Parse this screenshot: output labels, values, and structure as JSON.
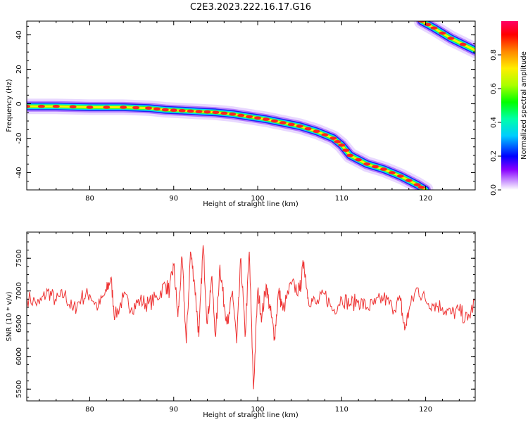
{
  "title": "C2E3.2023.222.16.17.G16",
  "colorbar": {
    "label": "Normalized spectral amplitude",
    "ticks": [
      "0.0",
      "0.2",
      "0.4",
      "0.6",
      "0.8"
    ],
    "tick_values": [
      0.0,
      0.2,
      0.4,
      0.6,
      0.8
    ],
    "range": [
      0,
      1
    ]
  },
  "chart_data": [
    {
      "type": "heatmap",
      "xlabel": "Height of straight line (km)",
      "ylabel": "Frequency (Hz)",
      "xlim": [
        72.5,
        125.9
      ],
      "ylim": [
        -50,
        48
      ],
      "xticks": [
        80,
        90,
        100,
        110,
        120
      ],
      "yticks": [
        -40,
        -20,
        0,
        20,
        40
      ],
      "ridges": [
        {
          "x": [
            72.5,
            76,
            80,
            84,
            87,
            89,
            91,
            93,
            95,
            97,
            99,
            101,
            103,
            105,
            107,
            109,
            110,
            111,
            113,
            115,
            117,
            119,
            120
          ],
          "y": [
            -1.5,
            -1.5,
            -2,
            -2,
            -2.5,
            -3.5,
            -4,
            -4.5,
            -5,
            -6,
            -7.5,
            -9,
            -11,
            -13,
            -16,
            -20,
            -24,
            -30,
            -35,
            -38,
            -42,
            -47,
            -50
          ],
          "peak_amplitude": 0.95
        },
        {
          "x": [
            119.5,
            121,
            123,
            125.9
          ],
          "y": [
            48,
            44,
            38,
            31
          ],
          "peak_amplitude": 0.9
        }
      ]
    },
    {
      "type": "line",
      "xlabel": "Height of straight line (km)",
      "ylabel": "SNR (10 * v/v)",
      "xlim": [
        72.5,
        125.9
      ],
      "ylim": [
        5320,
        7900
      ],
      "xticks": [
        80,
        90,
        100,
        110,
        120
      ],
      "yticks": [
        5500,
        6000,
        6500,
        7000,
        7500
      ],
      "color": "#ee3333",
      "series": [
        {
          "x": [
            72.5,
            74,
            75,
            76,
            77,
            78,
            79,
            80,
            81,
            82,
            82.5,
            83,
            84,
            85,
            86,
            87,
            88,
            89,
            89.5,
            90,
            90.5,
            91,
            91.5,
            92,
            92.5,
            93,
            93.5,
            94,
            94.5,
            95,
            95.5,
            96,
            96.5,
            97,
            97.5,
            98,
            98.5,
            99,
            99.5,
            100,
            100.5,
            101,
            101.5,
            102,
            102.5,
            103,
            104,
            105,
            105.5,
            106,
            107,
            108,
            109,
            110,
            111,
            112,
            113,
            114,
            115,
            116,
            117,
            117.5,
            118,
            119,
            120,
            121,
            122,
            123,
            124,
            125,
            125.9
          ],
          "y": [
            6900,
            6800,
            7000,
            6850,
            6950,
            6700,
            6900,
            6950,
            6750,
            7000,
            7200,
            6600,
            6900,
            6750,
            6850,
            6800,
            6900,
            7100,
            7000,
            7400,
            6600,
            7500,
            6200,
            7600,
            7100,
            6300,
            7700,
            6500,
            7200,
            6300,
            7400,
            6800,
            6500,
            7000,
            6200,
            7500,
            6300,
            7600,
            5500,
            7000,
            6600,
            7100,
            6700,
            6300,
            7000,
            6700,
            7100,
            7000,
            7450,
            6900,
            6800,
            6950,
            6700,
            6900,
            6800,
            6850,
            6750,
            6800,
            6900,
            6750,
            6850,
            6400,
            6700,
            7050,
            6850,
            6800,
            6750,
            6650,
            6700,
            6550,
            6850
          ]
        }
      ]
    }
  ]
}
